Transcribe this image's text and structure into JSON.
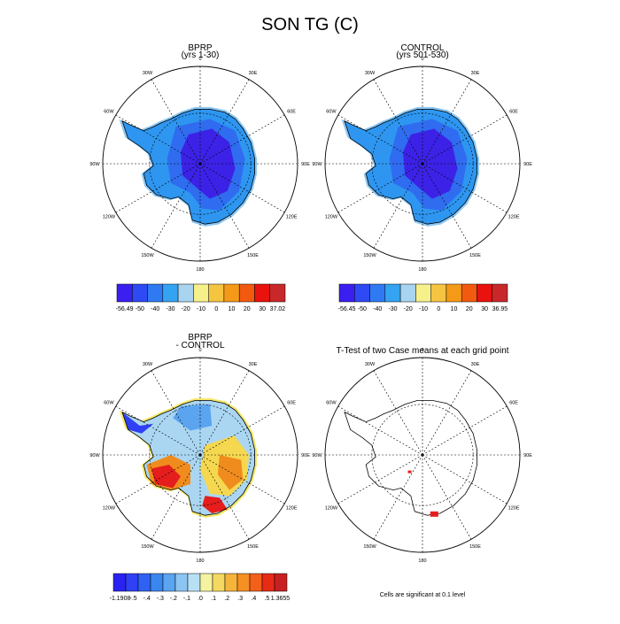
{
  "chart_data": {
    "type": "map",
    "title": "SON TG (C)",
    "panels": [
      {
        "id": "bprp",
        "title": "BPRP",
        "subtitle": "(yrs 1-30)",
        "colorbar_labels": [
          "-56.49",
          "-50",
          "-40",
          "-30",
          "-20",
          "-10",
          "0",
          "10",
          "20",
          "30",
          "37.02"
        ],
        "colorbar_colors": [
          "#3b1ff0",
          "#2f49f5",
          "#2f7af2",
          "#33a3f2",
          "#a8d4f0",
          "#f5f08a",
          "#f5c542",
          "#f59a18",
          "#f25a0f",
          "#e8120e",
          "#c8282a"
        ]
      },
      {
        "id": "control",
        "title": "CONTROL",
        "subtitle": "(yrs 501-530)",
        "colorbar_labels": [
          "-56.45",
          "-50",
          "-40",
          "-30",
          "-20",
          "-10",
          "0",
          "10",
          "20",
          "30",
          "36.95"
        ],
        "colorbar_colors": [
          "#3b1ff0",
          "#2f49f5",
          "#2f7af2",
          "#33a3f2",
          "#a8d4f0",
          "#f5f08a",
          "#f5c542",
          "#f59a18",
          "#f25a0f",
          "#e8120e",
          "#c8282a"
        ]
      },
      {
        "id": "diff",
        "title": "BPRP",
        "subtitle": "- CONTROL",
        "colorbar_labels": [
          "-1.1908",
          "-.5",
          "-.4",
          "-.3",
          "-.2",
          "-.1",
          ".0",
          ".1",
          ".2",
          ".3",
          ".4",
          ".5",
          "1.3655"
        ],
        "colorbar_colors": [
          "#2a22f2",
          "#3040f4",
          "#2f62f2",
          "#3a86f0",
          "#5aa4f0",
          "#8cc4f2",
          "#b8e0f5",
          "#f5f2a0",
          "#f5d860",
          "#f5b43a",
          "#f59024",
          "#f2601a",
          "#e82a16",
          "#c82022"
        ]
      },
      {
        "id": "ttest",
        "title": "T-Test of two Case means at each grid point",
        "footnote": "Cells are significant at 0.1 level"
      }
    ],
    "longitude_labels": [
      "0",
      "30E",
      "60E",
      "90E",
      "120E",
      "150E",
      "180",
      "150W",
      "120W",
      "90W",
      "60W",
      "30W"
    ],
    "projection": "south polar stereographic"
  },
  "colors": {
    "deep_blue": "#3c22e6",
    "blue": "#2f6cf0",
    "mid_blue": "#2e96f0",
    "light_blue": "#8ec8f2",
    "red": "#e51d1d",
    "orange": "#f08c1e",
    "yellow": "#f5d84a"
  }
}
